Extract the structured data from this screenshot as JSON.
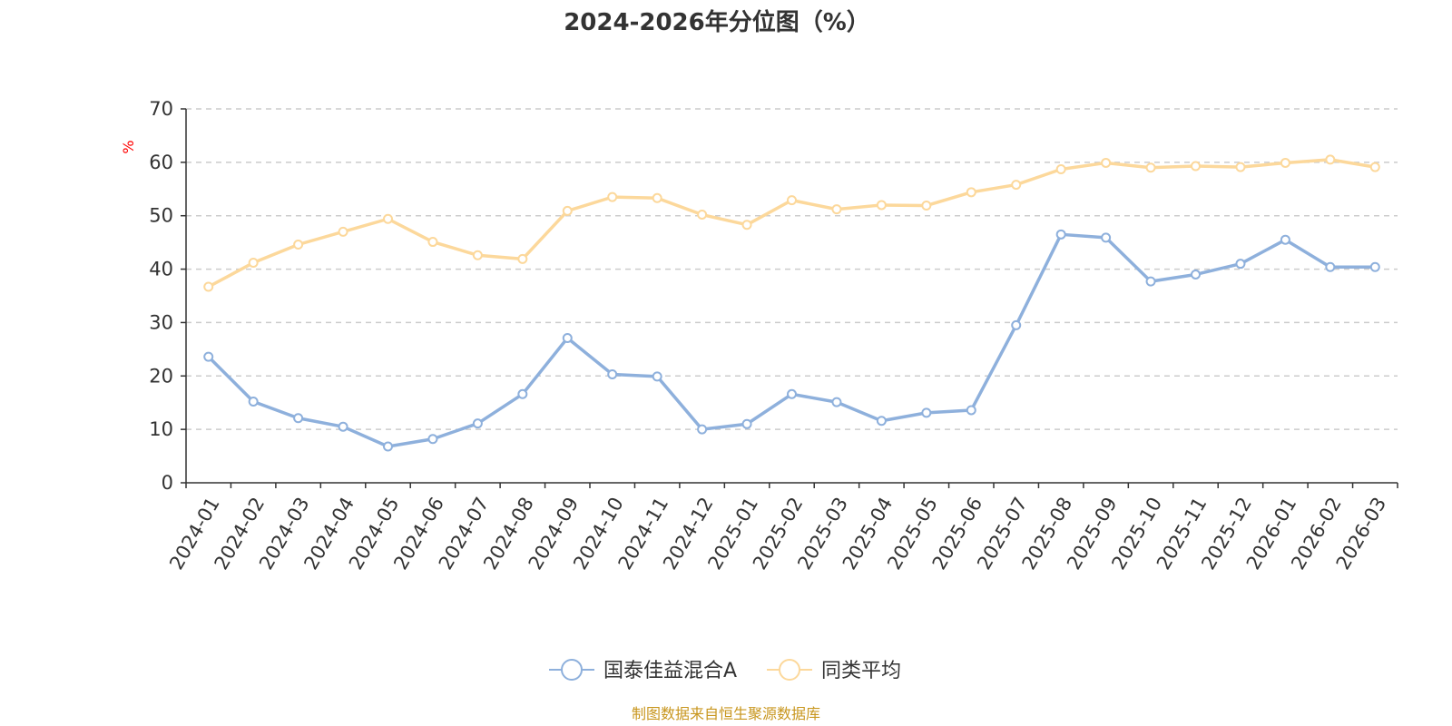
{
  "chart_data": {
    "type": "line",
    "title": "2024-2026年分位图（%）",
    "ylabel": "%",
    "xlabel": "",
    "ylim": [
      0,
      70
    ],
    "yticks": [
      0,
      10,
      20,
      30,
      40,
      50,
      60,
      70
    ],
    "grid": true,
    "legend": "bottom-center",
    "categories": [
      "2024-01",
      "2024-02",
      "2024-03",
      "2024-04",
      "2024-05",
      "2024-06",
      "2024-07",
      "2024-08",
      "2024-09",
      "2024-10",
      "2024-11",
      "2024-12",
      "2025-01",
      "2025-02",
      "2025-03",
      "2025-04",
      "2025-05",
      "2025-06",
      "2025-07",
      "2025-08",
      "2025-09",
      "2025-10",
      "2025-11",
      "2025-12",
      "2026-01",
      "2026-02",
      "2026-03"
    ],
    "series": [
      {
        "name": "国泰佳益混合A",
        "color": "#8eb0dc",
        "values": [
          23.6,
          15.2,
          12.1,
          10.5,
          6.8,
          8.2,
          11.1,
          16.6,
          27.1,
          20.3,
          19.9,
          10.0,
          11.0,
          16.6,
          15.1,
          11.6,
          13.1,
          13.6,
          29.5,
          46.5,
          45.9,
          37.7,
          39.0,
          41.0,
          45.5,
          40.4,
          40.4
        ]
      },
      {
        "name": "同类平均",
        "color": "#fcd89b",
        "values": [
          36.7,
          41.2,
          44.6,
          47.0,
          49.4,
          45.1,
          42.6,
          41.9,
          50.9,
          53.5,
          53.3,
          50.2,
          48.3,
          52.9,
          51.2,
          52.0,
          51.9,
          54.4,
          55.8,
          58.7,
          59.9,
          59.0,
          59.3,
          59.1,
          59.9,
          60.5,
          59.1
        ]
      }
    ],
    "source": "制图数据来自恒生聚源数据库"
  }
}
